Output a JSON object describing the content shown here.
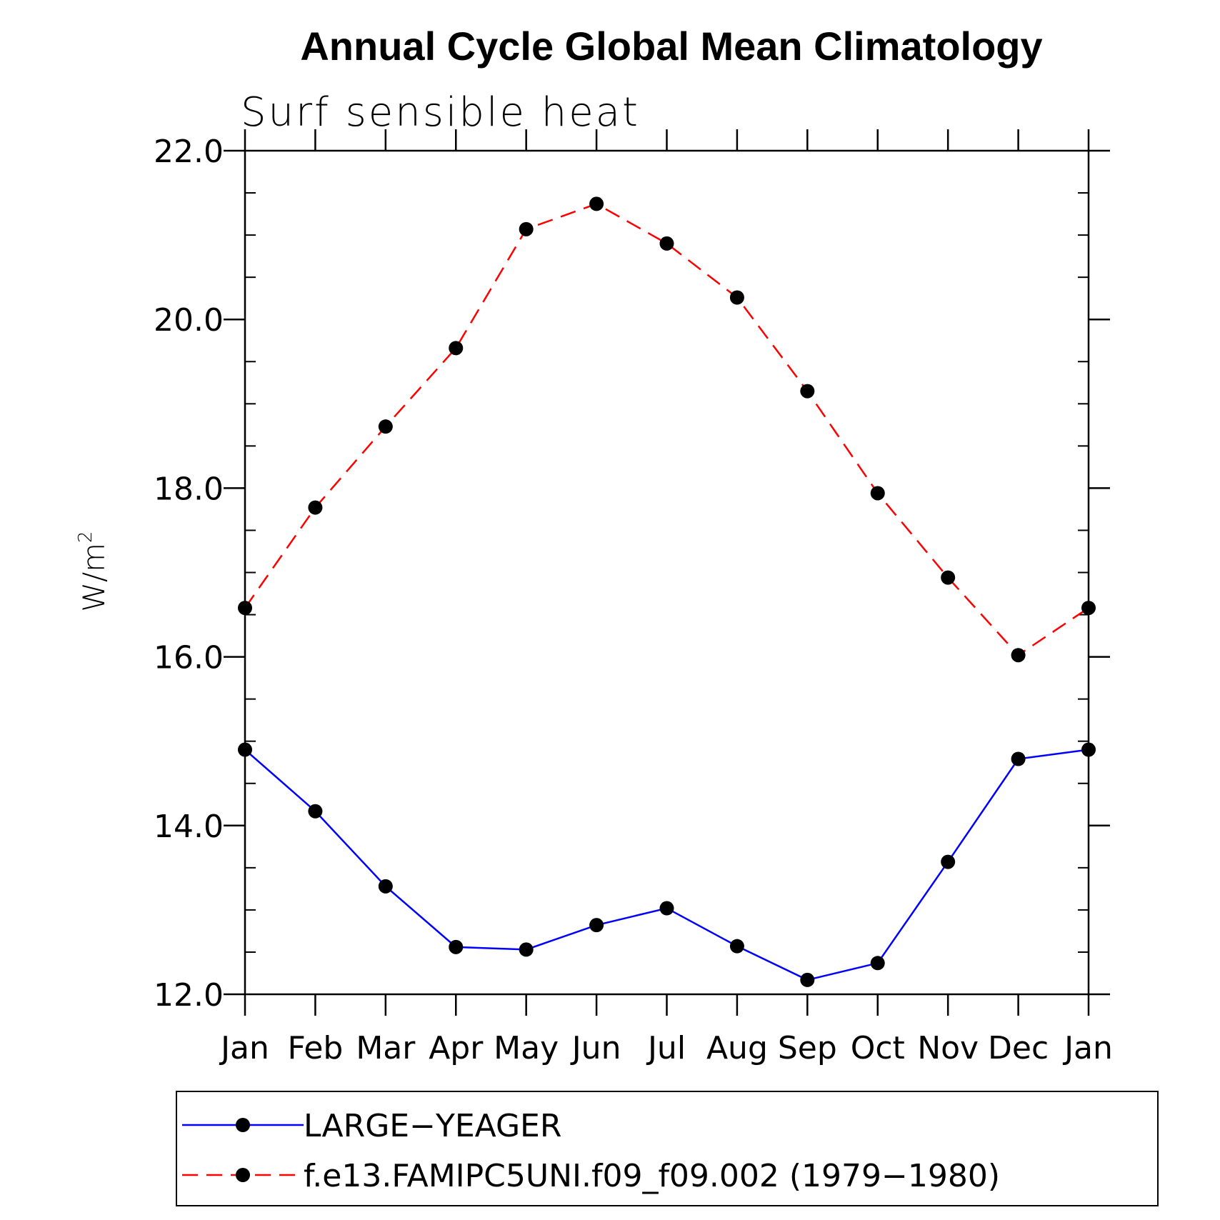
{
  "chart_data": {
    "type": "line",
    "title": "Annual Cycle Global Mean Climatology",
    "subtitle": "Surf sensible heat",
    "ylabel": "W/m",
    "ylabel_superscript": "2",
    "xlabel": "",
    "categories": [
      "Jan",
      "Feb",
      "Mar",
      "Apr",
      "May",
      "Jun",
      "Jul",
      "Aug",
      "Sep",
      "Oct",
      "Nov",
      "Dec",
      "Jan"
    ],
    "ylim": [
      12.0,
      22.0
    ],
    "yticks": [
      "12.0",
      "14.0",
      "16.0",
      "18.0",
      "20.0",
      "22.0"
    ],
    "grid": false,
    "legend_position": "bottom",
    "series": [
      {
        "name": "LARGE−YEAGER",
        "color": "#0000ff",
        "style": "solid",
        "values": [
          14.9,
          14.17,
          13.28,
          12.56,
          12.53,
          12.82,
          13.02,
          12.57,
          12.17,
          12.37,
          13.57,
          14.79,
          14.9
        ]
      },
      {
        "name": "f.e13.FAMIPC5UNI.f09_f09.002 (1979−1980)",
        "color": "#ff0000",
        "style": "dashed",
        "values": [
          16.58,
          17.77,
          18.73,
          19.66,
          21.07,
          21.37,
          20.9,
          20.26,
          19.15,
          17.94,
          16.94,
          16.02,
          16.58
        ]
      }
    ]
  }
}
